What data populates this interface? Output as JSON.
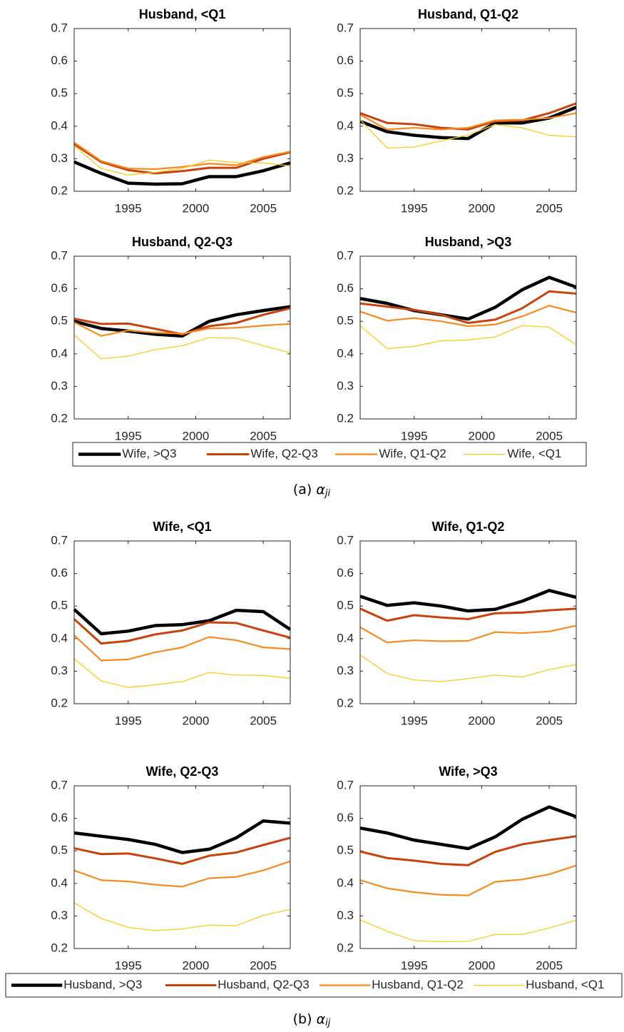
{
  "chart_data": [
    {
      "type": "line",
      "title": "Husband, <Q1",
      "x": [
        1991,
        1993,
        1995,
        1997,
        1999,
        2001,
        2003,
        2005,
        2007
      ],
      "xlim": [
        1991,
        2007
      ],
      "xticks": [
        1995,
        2000,
        2005
      ],
      "ylim": [
        0.2,
        0.7
      ],
      "yticks": [
        0.2,
        0.3,
        0.4,
        0.5,
        0.6,
        0.7
      ],
      "series": [
        {
          "name": "Wife, >Q3",
          "color": "#000000",
          "values": [
            0.29,
            0.255,
            0.225,
            0.222,
            0.223,
            0.245,
            0.245,
            0.263,
            0.287
          ]
        },
        {
          "name": "Wife, Q2-Q3",
          "color": "#c9410d",
          "values": [
            0.345,
            0.29,
            0.265,
            0.255,
            0.262,
            0.272,
            0.272,
            0.3,
            0.32
          ]
        },
        {
          "name": "Wife, Q1-Q2",
          "color": "#f58a20",
          "values": [
            0.35,
            0.293,
            0.27,
            0.268,
            0.275,
            0.285,
            0.28,
            0.305,
            0.322
          ]
        },
        {
          "name": "Wife, <Q1",
          "color": "#f7cc1e",
          "values": [
            0.34,
            0.27,
            0.25,
            0.258,
            0.27,
            0.296,
            0.288,
            0.287,
            0.278
          ]
        }
      ]
    },
    {
      "type": "line",
      "title": "Husband, Q1-Q2",
      "x": [
        1991,
        1993,
        1995,
        1997,
        1999,
        2001,
        2003,
        2005,
        2007
      ],
      "xlim": [
        1991,
        2007
      ],
      "xticks": [
        1995,
        2000,
        2005
      ],
      "ylim": [
        0.2,
        0.7
      ],
      "yticks": [
        0.2,
        0.3,
        0.4,
        0.5,
        0.6,
        0.7
      ],
      "series": [
        {
          "name": "Wife, >Q3",
          "color": "#000000",
          "values": [
            0.415,
            0.383,
            0.372,
            0.365,
            0.362,
            0.41,
            0.41,
            0.425,
            0.458
          ]
        },
        {
          "name": "Wife, Q2-Q3",
          "color": "#c9410d",
          "values": [
            0.44,
            0.41,
            0.406,
            0.395,
            0.39,
            0.415,
            0.418,
            0.44,
            0.47
          ]
        },
        {
          "name": "Wife, Q1-Q2",
          "color": "#f58a20",
          "values": [
            0.435,
            0.39,
            0.395,
            0.39,
            0.395,
            0.418,
            0.42,
            0.425,
            0.44
          ]
        },
        {
          "name": "Wife, <Q1",
          "color": "#f7cc1e",
          "values": [
            0.42,
            0.333,
            0.336,
            0.355,
            0.373,
            0.405,
            0.395,
            0.372,
            0.367
          ]
        }
      ]
    },
    {
      "type": "line",
      "title": "Husband, Q2-Q3",
      "x": [
        1991,
        1993,
        1995,
        1997,
        1999,
        2001,
        2003,
        2005,
        2007
      ],
      "xlim": [
        1991,
        2007
      ],
      "xticks": [
        1995,
        2000,
        2005
      ],
      "ylim": [
        0.2,
        0.7
      ],
      "yticks": [
        0.2,
        0.3,
        0.4,
        0.5,
        0.6,
        0.7
      ],
      "series": [
        {
          "name": "Wife, >Q3",
          "color": "#000000",
          "values": [
            0.5,
            0.478,
            0.47,
            0.46,
            0.455,
            0.5,
            0.52,
            0.533,
            0.545
          ]
        },
        {
          "name": "Wife, Q2-Q3",
          "color": "#c9410d",
          "values": [
            0.508,
            0.492,
            0.493,
            0.477,
            0.46,
            0.485,
            0.495,
            0.52,
            0.54
          ]
        },
        {
          "name": "Wife, Q1-Q2",
          "color": "#f58a20",
          "values": [
            0.497,
            0.455,
            0.472,
            0.465,
            0.462,
            0.478,
            0.48,
            0.487,
            0.492
          ]
        },
        {
          "name": "Wife, <Q1",
          "color": "#f7cc1e",
          "values": [
            0.458,
            0.385,
            0.393,
            0.413,
            0.425,
            0.45,
            0.448,
            0.425,
            0.403
          ]
        }
      ]
    },
    {
      "type": "line",
      "title": "Husband, >Q3",
      "x": [
        1991,
        1993,
        1995,
        1997,
        1999,
        2001,
        2003,
        2005,
        2007
      ],
      "xlim": [
        1991,
        2007
      ],
      "xticks": [
        1995,
        2000,
        2005
      ],
      "ylim": [
        0.2,
        0.7
      ],
      "yticks": [
        0.2,
        0.3,
        0.4,
        0.5,
        0.6,
        0.7
      ],
      "series": [
        {
          "name": "Wife, >Q3",
          "color": "#000000",
          "values": [
            0.57,
            0.555,
            0.533,
            0.52,
            0.507,
            0.543,
            0.597,
            0.635,
            0.605
          ]
        },
        {
          "name": "Wife, Q2-Q3",
          "color": "#c9410d",
          "values": [
            0.555,
            0.545,
            0.535,
            0.52,
            0.495,
            0.505,
            0.54,
            0.592,
            0.585
          ]
        },
        {
          "name": "Wife, Q1-Q2",
          "color": "#f58a20",
          "values": [
            0.53,
            0.502,
            0.51,
            0.5,
            0.485,
            0.49,
            0.515,
            0.548,
            0.527
          ]
        },
        {
          "name": "Wife, <Q1",
          "color": "#f7cc1e",
          "values": [
            0.487,
            0.416,
            0.423,
            0.44,
            0.443,
            0.452,
            0.487,
            0.482,
            0.428
          ]
        }
      ]
    },
    {
      "type": "line",
      "title": "Wife, <Q1",
      "x": [
        1991,
        1993,
        1995,
        1997,
        1999,
        2001,
        2003,
        2005,
        2007
      ],
      "xlim": [
        1991,
        2007
      ],
      "xticks": [
        1995,
        2000,
        2005
      ],
      "ylim": [
        0.2,
        0.7
      ],
      "yticks": [
        0.2,
        0.3,
        0.4,
        0.5,
        0.6,
        0.7
      ],
      "series": [
        {
          "name": "Husband, >Q3",
          "color": "#000000",
          "values": [
            0.49,
            0.415,
            0.423,
            0.44,
            0.443,
            0.455,
            0.487,
            0.483,
            0.428
          ]
        },
        {
          "name": "Husband, Q2-Q3",
          "color": "#c9410d",
          "values": [
            0.46,
            0.385,
            0.393,
            0.413,
            0.425,
            0.45,
            0.448,
            0.425,
            0.403
          ]
        },
        {
          "name": "Husband, Q1-Q2",
          "color": "#f58a20",
          "values": [
            0.41,
            0.333,
            0.336,
            0.358,
            0.373,
            0.405,
            0.395,
            0.373,
            0.368
          ]
        },
        {
          "name": "Husband, <Q1",
          "color": "#f7cc1e",
          "values": [
            0.338,
            0.27,
            0.25,
            0.258,
            0.268,
            0.296,
            0.288,
            0.287,
            0.278
          ]
        }
      ]
    },
    {
      "type": "line",
      "title": "Wife, Q1-Q2",
      "x": [
        1991,
        1993,
        1995,
        1997,
        1999,
        2001,
        2003,
        2005,
        2007
      ],
      "xlim": [
        1991,
        2007
      ],
      "xticks": [
        1995,
        2000,
        2005
      ],
      "ylim": [
        0.2,
        0.7
      ],
      "yticks": [
        0.2,
        0.3,
        0.4,
        0.5,
        0.6,
        0.7
      ],
      "series": [
        {
          "name": "Husband, >Q3",
          "color": "#000000",
          "values": [
            0.53,
            0.502,
            0.51,
            0.5,
            0.485,
            0.49,
            0.515,
            0.548,
            0.527
          ]
        },
        {
          "name": "Husband, Q2-Q3",
          "color": "#c9410d",
          "values": [
            0.492,
            0.455,
            0.472,
            0.465,
            0.46,
            0.478,
            0.48,
            0.487,
            0.492
          ]
        },
        {
          "name": "Husband, Q1-Q2",
          "color": "#f58a20",
          "values": [
            0.435,
            0.388,
            0.395,
            0.392,
            0.393,
            0.42,
            0.417,
            0.422,
            0.44
          ]
        },
        {
          "name": "Husband, <Q1",
          "color": "#f7cc1e",
          "values": [
            0.35,
            0.293,
            0.273,
            0.268,
            0.277,
            0.288,
            0.282,
            0.305,
            0.32
          ]
        }
      ]
    },
    {
      "type": "line",
      "title": "Wife, Q2-Q3",
      "x": [
        1991,
        1993,
        1995,
        1997,
        1999,
        2001,
        2003,
        2005,
        2007
      ],
      "xlim": [
        1991,
        2007
      ],
      "xticks": [
        1995,
        2000,
        2005
      ],
      "ylim": [
        0.2,
        0.7
      ],
      "yticks": [
        0.2,
        0.3,
        0.4,
        0.5,
        0.6,
        0.7
      ],
      "series": [
        {
          "name": "Husband, >Q3",
          "color": "#000000",
          "values": [
            0.555,
            0.545,
            0.535,
            0.52,
            0.495,
            0.505,
            0.54,
            0.592,
            0.585
          ]
        },
        {
          "name": "Husband, Q2-Q3",
          "color": "#c9410d",
          "values": [
            0.508,
            0.49,
            0.492,
            0.477,
            0.46,
            0.485,
            0.495,
            0.518,
            0.54
          ]
        },
        {
          "name": "Husband, Q1-Q2",
          "color": "#f58a20",
          "values": [
            0.44,
            0.41,
            0.406,
            0.396,
            0.39,
            0.416,
            0.42,
            0.44,
            0.468
          ]
        },
        {
          "name": "Husband, <Q1",
          "color": "#f7cc1e",
          "values": [
            0.34,
            0.292,
            0.265,
            0.255,
            0.26,
            0.272,
            0.27,
            0.302,
            0.32
          ]
        }
      ]
    },
    {
      "type": "line",
      "title": "Wife, >Q3",
      "x": [
        1991,
        1993,
        1995,
        1997,
        1999,
        2001,
        2003,
        2005,
        2007
      ],
      "xlim": [
        1991,
        2007
      ],
      "xticks": [
        1995,
        2000,
        2005
      ],
      "ylim": [
        0.2,
        0.7
      ],
      "yticks": [
        0.2,
        0.3,
        0.4,
        0.5,
        0.6,
        0.7
      ],
      "series": [
        {
          "name": "Husband, >Q3",
          "color": "#000000",
          "values": [
            0.57,
            0.555,
            0.533,
            0.52,
            0.507,
            0.543,
            0.597,
            0.635,
            0.605
          ]
        },
        {
          "name": "Husband, Q2-Q3",
          "color": "#c9410d",
          "values": [
            0.498,
            0.478,
            0.47,
            0.46,
            0.456,
            0.497,
            0.52,
            0.533,
            0.545
          ]
        },
        {
          "name": "Husband, Q1-Q2",
          "color": "#f58a20",
          "values": [
            0.41,
            0.385,
            0.373,
            0.365,
            0.363,
            0.405,
            0.412,
            0.428,
            0.455
          ]
        },
        {
          "name": "Husband, <Q1",
          "color": "#f7cc1e",
          "values": [
            0.288,
            0.253,
            0.224,
            0.221,
            0.222,
            0.243,
            0.243,
            0.263,
            0.287
          ]
        }
      ]
    }
  ],
  "captions": [
    {
      "label": "(a)",
      "symbol": "α",
      "subscript": "ji"
    },
    {
      "label": "(b)",
      "symbol": "α",
      "subscript": "ij"
    }
  ]
}
